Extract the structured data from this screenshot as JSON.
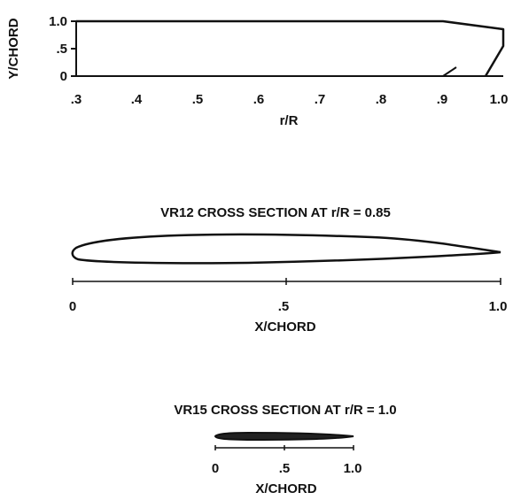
{
  "planform": {
    "ylabel": "Y/CHORD",
    "xlabel": "r/R",
    "yticks": [
      "1.0",
      ".5",
      "0"
    ],
    "xticks": [
      ".3",
      ".4",
      ".5",
      ".6",
      ".7",
      ".8",
      ".9",
      "1.0"
    ]
  },
  "section_vr12": {
    "title": "VR12 CROSS SECTION AT r/R = 0.85",
    "xticks": [
      "0",
      ".5",
      "1.0"
    ],
    "xlabel": "X/CHORD"
  },
  "section_vr15": {
    "title": "VR15 CROSS SECTION AT r/R = 1.0",
    "xticks": [
      "0",
      ".5",
      "1.0"
    ],
    "xlabel": "X/CHORD"
  }
}
